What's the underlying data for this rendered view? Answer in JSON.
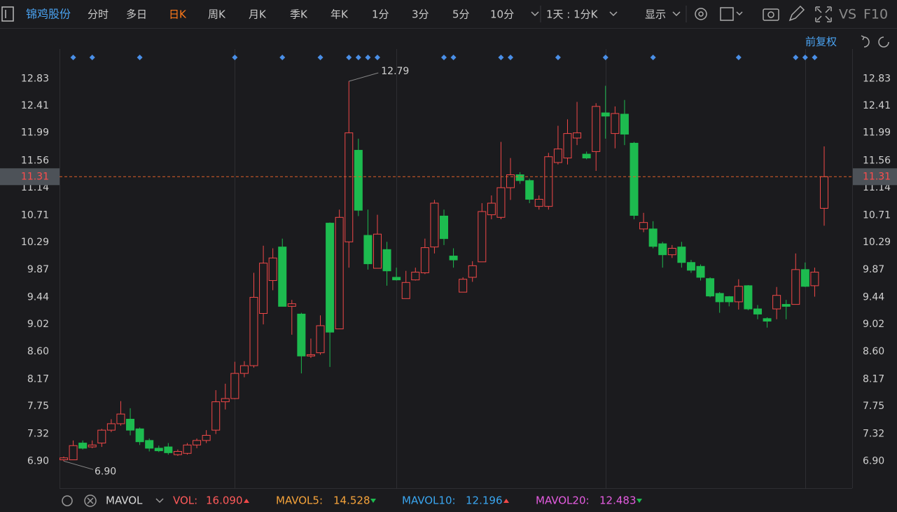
{
  "toolbar": {
    "stock": "锦鸡股份",
    "periods": [
      "分时",
      "多日",
      "日K",
      "周K",
      "月K",
      "季K",
      "年K",
      "1分",
      "3分",
      "5分",
      "10分"
    ],
    "active_period": 2,
    "combo": "1天 : 1分K",
    "display": "显示",
    "vs": "VS",
    "f10": "F10"
  },
  "adjust": "前复权",
  "chart_data": {
    "type": "candlestick",
    "open": [
      6.92,
      6.92,
      7.18,
      7.12,
      7.18,
      7.38,
      7.48,
      7.55,
      7.4,
      7.22,
      7.1,
      7.12,
      7.0,
      7.02,
      7.15,
      7.22,
      7.38,
      7.82,
      7.87,
      8.26,
      8.38,
      9.19,
      9.7,
      10.22,
      9.3,
      9.18,
      8.53,
      8.58,
      10.59,
      8.95,
      10.3,
      11.72,
      10.4,
      9.89,
      10.18,
      9.75,
      9.42,
      9.71,
      9.82,
      10.22,
      10.7,
      10.08,
      9.52,
      9.75,
      9.99,
      10.72,
      10.68,
      11.14,
      11.34,
      11.25,
      10.85,
      10.85,
      11.53,
      11.6,
      11.91,
      11.66,
      11.7,
      12.3,
      11.98,
      12.28,
      11.83,
      10.5,
      10.5,
      10.27,
      10.1,
      10.22,
      9.98,
      9.92,
      9.73,
      9.5,
      9.45,
      9.37,
      9.62,
      9.26,
      9.11,
      9.26,
      9.33,
      9.33,
      9.87,
      9.62,
      10.82
    ],
    "high": [
      6.97,
      7.22,
      7.22,
      7.22,
      7.4,
      7.55,
      7.83,
      7.72,
      7.42,
      7.25,
      7.14,
      7.18,
      7.08,
      7.18,
      7.25,
      7.38,
      8.0,
      8.1,
      8.44,
      8.45,
      9.82,
      10.24,
      10.2,
      10.35,
      9.4,
      9.2,
      8.8,
      9.16,
      10.6,
      10.8,
      12.79,
      11.9,
      10.8,
      10.72,
      10.3,
      9.9,
      9.85,
      9.9,
      10.35,
      10.95,
      10.8,
      10.2,
      9.75,
      10.0,
      10.9,
      11.02,
      11.85,
      11.6,
      11.38,
      11.28,
      11.02,
      11.68,
      12.1,
      12.2,
      12.47,
      11.7,
      12.45,
      12.72,
      12.4,
      12.5,
      11.85,
      10.75,
      10.62,
      10.3,
      10.25,
      10.3,
      10.02,
      9.95,
      9.75,
      9.52,
      9.46,
      9.72,
      9.63,
      9.32,
      9.13,
      9.6,
      9.4,
      10.12,
      9.98,
      9.9,
      11.78
    ],
    "low": [
      6.9,
      6.92,
      7.08,
      7.1,
      7.12,
      7.35,
      7.45,
      7.3,
      7.15,
      7.05,
      7.04,
      7.0,
      6.98,
      7.0,
      7.1,
      7.18,
      7.32,
      7.7,
      7.86,
      8.2,
      8.35,
      9.02,
      9.55,
      9.3,
      8.86,
      8.26,
      8.5,
      8.55,
      8.36,
      8.95,
      9.9,
      10.7,
      9.87,
      9.89,
      9.62,
      9.7,
      9.42,
      9.7,
      9.8,
      10.12,
      10.25,
      9.9,
      9.52,
      9.68,
      9.99,
      10.65,
      10.65,
      10.95,
      11.2,
      10.9,
      10.8,
      10.8,
      11.5,
      11.5,
      11.8,
      11.58,
      11.4,
      11.9,
      11.75,
      11.8,
      10.65,
      10.45,
      10.2,
      9.9,
      10.05,
      9.9,
      9.82,
      9.7,
      9.44,
      9.2,
      9.3,
      9.25,
      9.24,
      9.1,
      8.97,
      9.1,
      9.1,
      9.33,
      9.6,
      9.45,
      10.55
    ],
    "close": [
      6.95,
      7.14,
      7.1,
      7.15,
      7.38,
      7.48,
      7.63,
      7.38,
      7.2,
      7.1,
      7.06,
      7.03,
      7.05,
      7.15,
      7.22,
      7.3,
      7.82,
      7.87,
      8.26,
      8.38,
      9.44,
      9.97,
      10.05,
      9.3,
      9.34,
      8.53,
      8.55,
      9.0,
      8.9,
      10.68,
      11.99,
      10.79,
      9.96,
      10.42,
      9.85,
      9.71,
      9.67,
      9.83,
      10.21,
      10.9,
      10.35,
      10.02,
      9.72,
      9.93,
      10.77,
      10.9,
      11.14,
      11.34,
      11.25,
      10.96,
      10.96,
      11.62,
      11.74,
      11.98,
      11.99,
      11.6,
      12.4,
      12.25,
      12.29,
      11.97,
      10.71,
      10.6,
      10.23,
      10.1,
      10.2,
      9.98,
      9.86,
      9.75,
      9.46,
      9.37,
      9.37,
      9.61,
      9.26,
      9.18,
      9.07,
      9.47,
      9.3,
      9.87,
      9.61,
      9.83,
      11.31
    ],
    "ylim": [
      6.48,
      13.29
    ],
    "yticks": [
      12.83,
      12.41,
      11.99,
      11.56,
      11.14,
      10.71,
      10.29,
      9.87,
      9.44,
      9.02,
      {
        "value": 8.6,
        "label": "8.60"
      },
      8.17,
      7.75,
      7.32,
      {
        "value": 6.9,
        "label": "6.90"
      }
    ],
    "last_price": 11.31,
    "high_label": 12.79,
    "low_label": {
      "value": 6.9,
      "label": "6.90"
    },
    "markers": [
      1,
      3,
      8,
      18,
      23,
      27,
      30,
      31,
      32,
      33,
      40,
      41,
      46,
      47,
      52,
      57,
      62,
      71,
      77,
      78,
      79
    ],
    "xgrid": [
      18,
      35,
      57,
      78
    ],
    "up_color": "#f04848",
    "down_color": "#1dbb4f"
  },
  "indicator": {
    "name": "MAVOL",
    "items": [
      {
        "label": "VOL:",
        "value": {
          "value": 16.09,
          "label": "16.090"
        },
        "dir": "up",
        "color": "#ff5a5a"
      },
      {
        "label": "MAVOL5:",
        "value": 14.528,
        "dir": "down",
        "color": "#f5a33a"
      },
      {
        "label": "MAVOL10:",
        "value": 12.196,
        "dir": "up",
        "color": "#3aa6f0"
      },
      {
        "label": "MAVOL20:",
        "value": 12.483,
        "dir": "down",
        "color": "#e45ce0"
      }
    ]
  }
}
